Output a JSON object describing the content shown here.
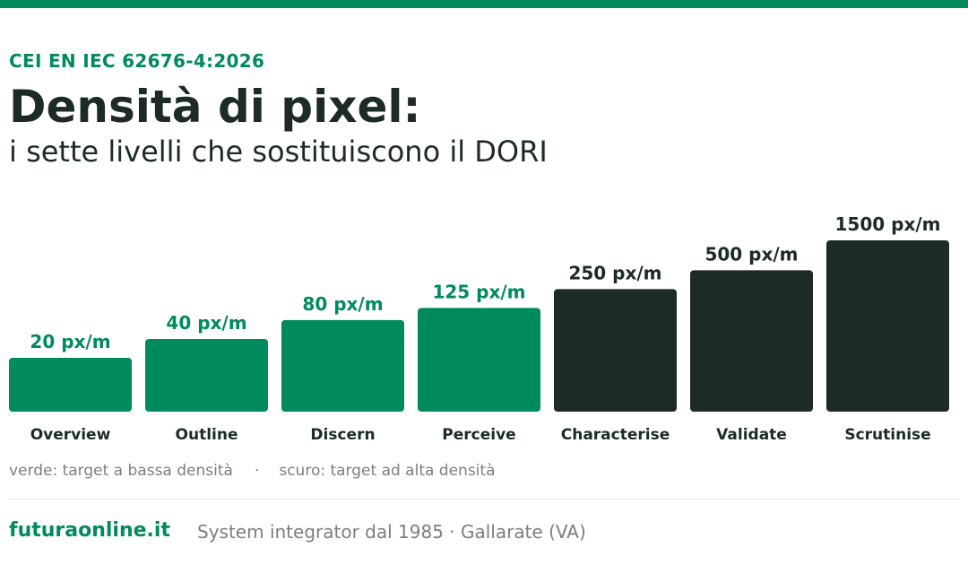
{
  "header": {
    "kicker": "CEI EN IEC 62676-4:2026",
    "title": "Densità di pixel:",
    "subtitle": "i sette livelli che sostituiscono il DORI"
  },
  "colors": {
    "accent": "#008a5e",
    "dark": "#1d2a26",
    "muted": "#7a7f7d"
  },
  "chart_data": {
    "type": "bar",
    "categories": [
      "Overview",
      "Outline",
      "Discern",
      "Perceive",
      "Characterise",
      "Validate",
      "Scrutinise"
    ],
    "values": [
      20,
      40,
      80,
      125,
      250,
      500,
      1500
    ],
    "value_labels": [
      "20 px/m",
      "40 px/m",
      "80 px/m",
      "125 px/m",
      "250 px/m",
      "500 px/m",
      "1500 px/m"
    ],
    "groups": [
      "low",
      "low",
      "low",
      "low",
      "high",
      "high",
      "high"
    ],
    "group_colors": {
      "low": "#008a5e",
      "high": "#1d2a26"
    },
    "scale": "log",
    "unit": "px/m",
    "title": "",
    "xlabel": "",
    "ylabel": "",
    "grid": false
  },
  "legend": {
    "low_label": "verde: target a bassa densità",
    "separator": "·",
    "high_label": "scuro: target ad alta densità"
  },
  "footer": {
    "brand": "futuraonline.it",
    "tagline": "System integrator dal 1985 · Gallarate (VA)"
  }
}
